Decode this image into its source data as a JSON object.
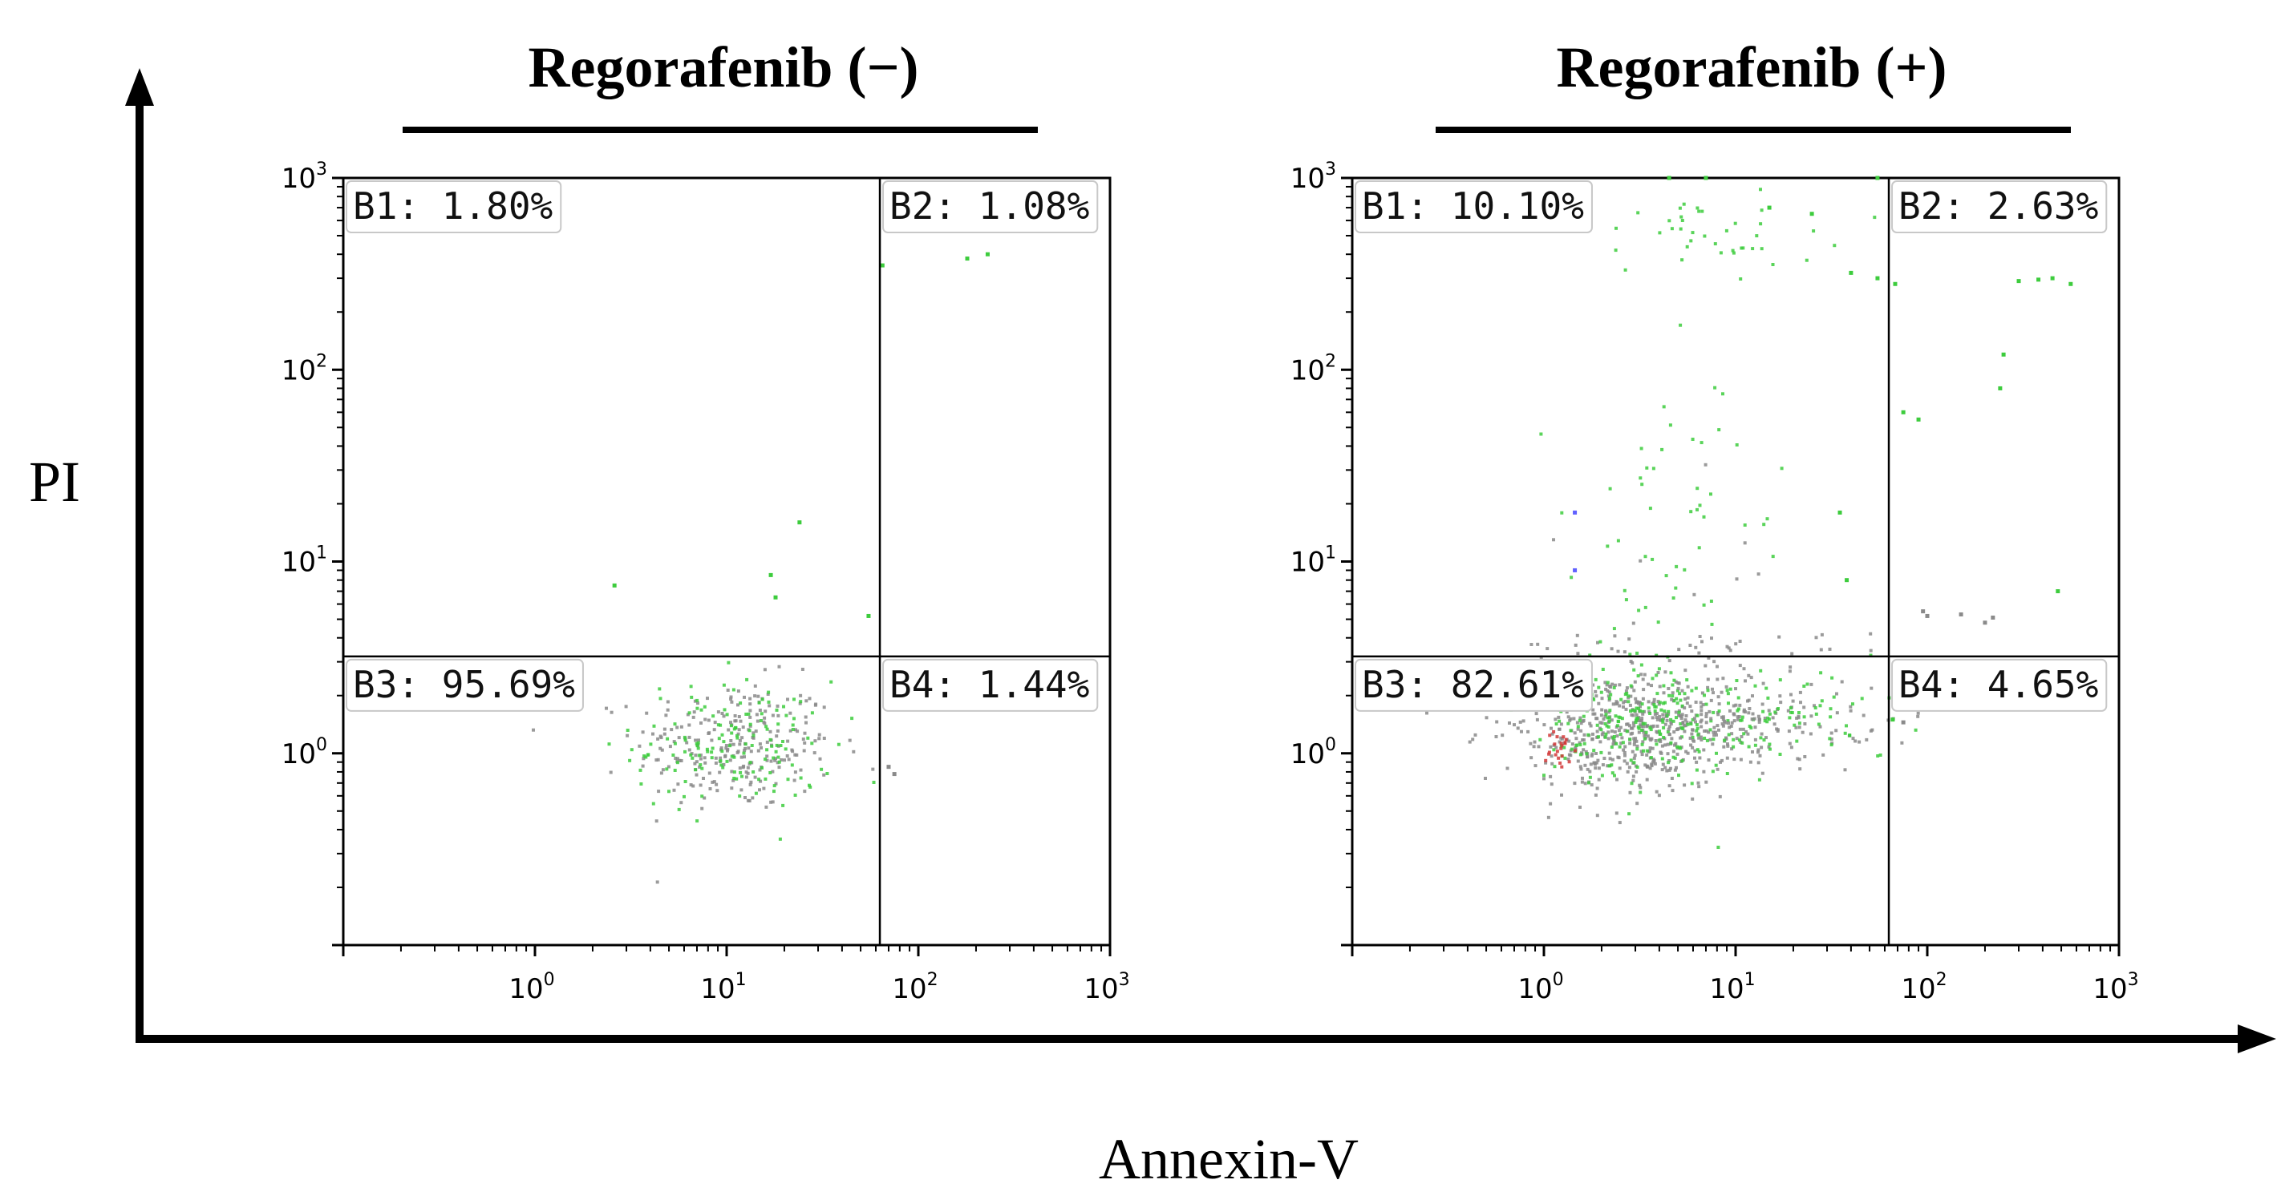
{
  "figure": {
    "y_axis_label": "PI",
    "x_axis_label": "Annexin-V"
  },
  "chart_data": [
    {
      "type": "scatter",
      "title": "Regorafenib (−)",
      "xlabel": "Annexin-V",
      "ylabel": "PI",
      "xscale": "log",
      "yscale": "log",
      "xlim": [
        0.1,
        1000
      ],
      "ylim": [
        0.1,
        1000
      ],
      "x_tick_labels": [
        {
          "base": "10",
          "exp": "0"
        },
        {
          "base": "10",
          "exp": "1"
        },
        {
          "base": "10",
          "exp": "2"
        },
        {
          "base": "10",
          "exp": "3"
        }
      ],
      "y_tick_labels": [
        {
          "base": "10",
          "exp": "0"
        },
        {
          "base": "10",
          "exp": "1"
        },
        {
          "base": "10",
          "exp": "2"
        },
        {
          "base": "10",
          "exp": "3"
        }
      ],
      "x_tick_values": [
        1,
        10,
        100,
        1000
      ],
      "y_tick_values": [
        1,
        10,
        100,
        1000
      ],
      "gate": {
        "x": 63,
        "y": 3.2
      },
      "quadrants": [
        {
          "label": "B1: 1.80%",
          "position": "top-left"
        },
        {
          "label": "B2: 1.08%",
          "position": "top-right"
        },
        {
          "label": "B3: 95.69%",
          "position": "bottom-left"
        },
        {
          "label": "B4: 1.44%",
          "position": "bottom-right"
        }
      ],
      "point_colors": {
        "grey": "#8a8a8a",
        "green": "#3dcc3d",
        "red": "#d23a3a",
        "blue": "#6060ff"
      },
      "clusters": [
        {
          "color": "grey",
          "n": 260,
          "cx": 11,
          "cy": 1.1,
          "sx": 0.26,
          "sy": 0.17
        },
        {
          "color": "green",
          "n": 150,
          "cx": 11,
          "cy": 1.1,
          "sx": 0.26,
          "sy": 0.17
        }
      ],
      "points": [
        {
          "x": 180,
          "y": 380,
          "color": "green"
        },
        {
          "x": 230,
          "y": 400,
          "color": "green"
        },
        {
          "x": 65,
          "y": 350,
          "color": "green"
        },
        {
          "x": 24,
          "y": 16,
          "color": "green"
        },
        {
          "x": 17,
          "y": 8.5,
          "color": "green"
        },
        {
          "x": 2.6,
          "y": 7.5,
          "color": "green"
        },
        {
          "x": 18,
          "y": 6.5,
          "color": "green"
        },
        {
          "x": 55,
          "y": 5.2,
          "color": "green"
        },
        {
          "x": 70,
          "y": 0.85,
          "color": "grey"
        },
        {
          "x": 75,
          "y": 0.78,
          "color": "grey"
        }
      ]
    },
    {
      "type": "scatter",
      "title": "Regorafenib (+)",
      "xlabel": "Annexin-V",
      "ylabel": "PI",
      "xscale": "log",
      "yscale": "log",
      "xlim": [
        0.1,
        1000
      ],
      "ylim": [
        0.1,
        1000
      ],
      "x_tick_labels": [
        {
          "base": "10",
          "exp": "0"
        },
        {
          "base": "10",
          "exp": "1"
        },
        {
          "base": "10",
          "exp": "2"
        },
        {
          "base": "10",
          "exp": "3"
        }
      ],
      "y_tick_labels": [
        {
          "base": "10",
          "exp": "0"
        },
        {
          "base": "10",
          "exp": "1"
        },
        {
          "base": "10",
          "exp": "2"
        },
        {
          "base": "10",
          "exp": "3"
        }
      ],
      "x_tick_values": [
        1,
        10,
        100,
        1000
      ],
      "y_tick_values": [
        1,
        10,
        100,
        1000
      ],
      "gate": {
        "x": 63,
        "y": 3.2
      },
      "quadrants": [
        {
          "label": "B1: 10.10%",
          "position": "top-left"
        },
        {
          "label": "B2: 2.63%",
          "position": "top-right"
        },
        {
          "label": "B3: 82.61%",
          "position": "bottom-left"
        },
        {
          "label": "B4: 4.65%",
          "position": "bottom-right"
        }
      ],
      "point_colors": {
        "grey": "#8a8a8a",
        "green": "#3dcc3d",
        "red": "#d23a3a",
        "blue": "#6060ff"
      },
      "clusters": [
        {
          "color": "grey",
          "n": 520,
          "cx": 2.6,
          "cy": 1.3,
          "sx": 0.32,
          "sy": 0.16
        },
        {
          "color": "green",
          "n": 200,
          "cx": 3,
          "cy": 1.4,
          "sx": 0.3,
          "sy": 0.15
        },
        {
          "color": "grey",
          "n": 160,
          "cx": 12,
          "cy": 1.5,
          "sx": 0.33,
          "sy": 0.12
        },
        {
          "color": "green",
          "n": 90,
          "cx": 15,
          "cy": 1.5,
          "sx": 0.35,
          "sy": 0.12
        },
        {
          "color": "red",
          "n": 22,
          "cx": 1.2,
          "cy": 1.0,
          "sx": 0.06,
          "sy": 0.07
        },
        {
          "color": "grey",
          "n": 35,
          "cx": 6,
          "cy": 3.6,
          "sx": 0.45,
          "sy": 0.05
        },
        {
          "color": "green",
          "n": 40,
          "cx": 8,
          "cy": 500,
          "sx": 0.28,
          "sy": 0.1
        },
        {
          "color": "green",
          "n": 60,
          "cx": 5,
          "cy": 12,
          "sx": 0.28,
          "sy": 0.5
        },
        {
          "color": "grey",
          "n": 10,
          "cx": 5,
          "cy": 8,
          "sx": 0.25,
          "sy": 0.4
        }
      ],
      "points": [
        {
          "x": 1.45,
          "y": 18,
          "color": "blue"
        },
        {
          "x": 1.45,
          "y": 9,
          "color": "blue"
        },
        {
          "x": 250,
          "y": 120,
          "color": "green"
        },
        {
          "x": 240,
          "y": 80,
          "color": "green"
        },
        {
          "x": 90,
          "y": 55,
          "color": "green"
        },
        {
          "x": 75,
          "y": 60,
          "color": "green"
        },
        {
          "x": 450,
          "y": 300,
          "color": "green"
        },
        {
          "x": 560,
          "y": 280,
          "color": "green"
        },
        {
          "x": 300,
          "y": 290,
          "color": "green"
        },
        {
          "x": 380,
          "y": 295,
          "color": "green"
        },
        {
          "x": 68,
          "y": 280,
          "color": "green"
        },
        {
          "x": 95,
          "y": 5.5,
          "color": "grey"
        },
        {
          "x": 100,
          "y": 5.2,
          "color": "grey"
        },
        {
          "x": 150,
          "y": 5.3,
          "color": "grey"
        },
        {
          "x": 200,
          "y": 4.8,
          "color": "grey"
        },
        {
          "x": 220,
          "y": 5.1,
          "color": "grey"
        },
        {
          "x": 480,
          "y": 7,
          "color": "green"
        },
        {
          "x": 82,
          "y": 1.7,
          "color": "green"
        },
        {
          "x": 66,
          "y": 1.5,
          "color": "green"
        },
        {
          "x": 75,
          "y": 1.45,
          "color": "grey"
        },
        {
          "x": 35,
          "y": 18,
          "color": "green"
        },
        {
          "x": 38,
          "y": 8,
          "color": "green"
        },
        {
          "x": 55,
          "y": 300,
          "color": "green"
        },
        {
          "x": 40,
          "y": 320,
          "color": "green"
        },
        {
          "x": 25,
          "y": 650,
          "color": "green"
        },
        {
          "x": 15,
          "y": 700,
          "color": "green"
        },
        {
          "x": 4.5,
          "y": 1000,
          "color": "green"
        },
        {
          "x": 7,
          "y": 1000,
          "color": "green"
        },
        {
          "x": 55,
          "y": 1000,
          "color": "green"
        }
      ]
    }
  ]
}
